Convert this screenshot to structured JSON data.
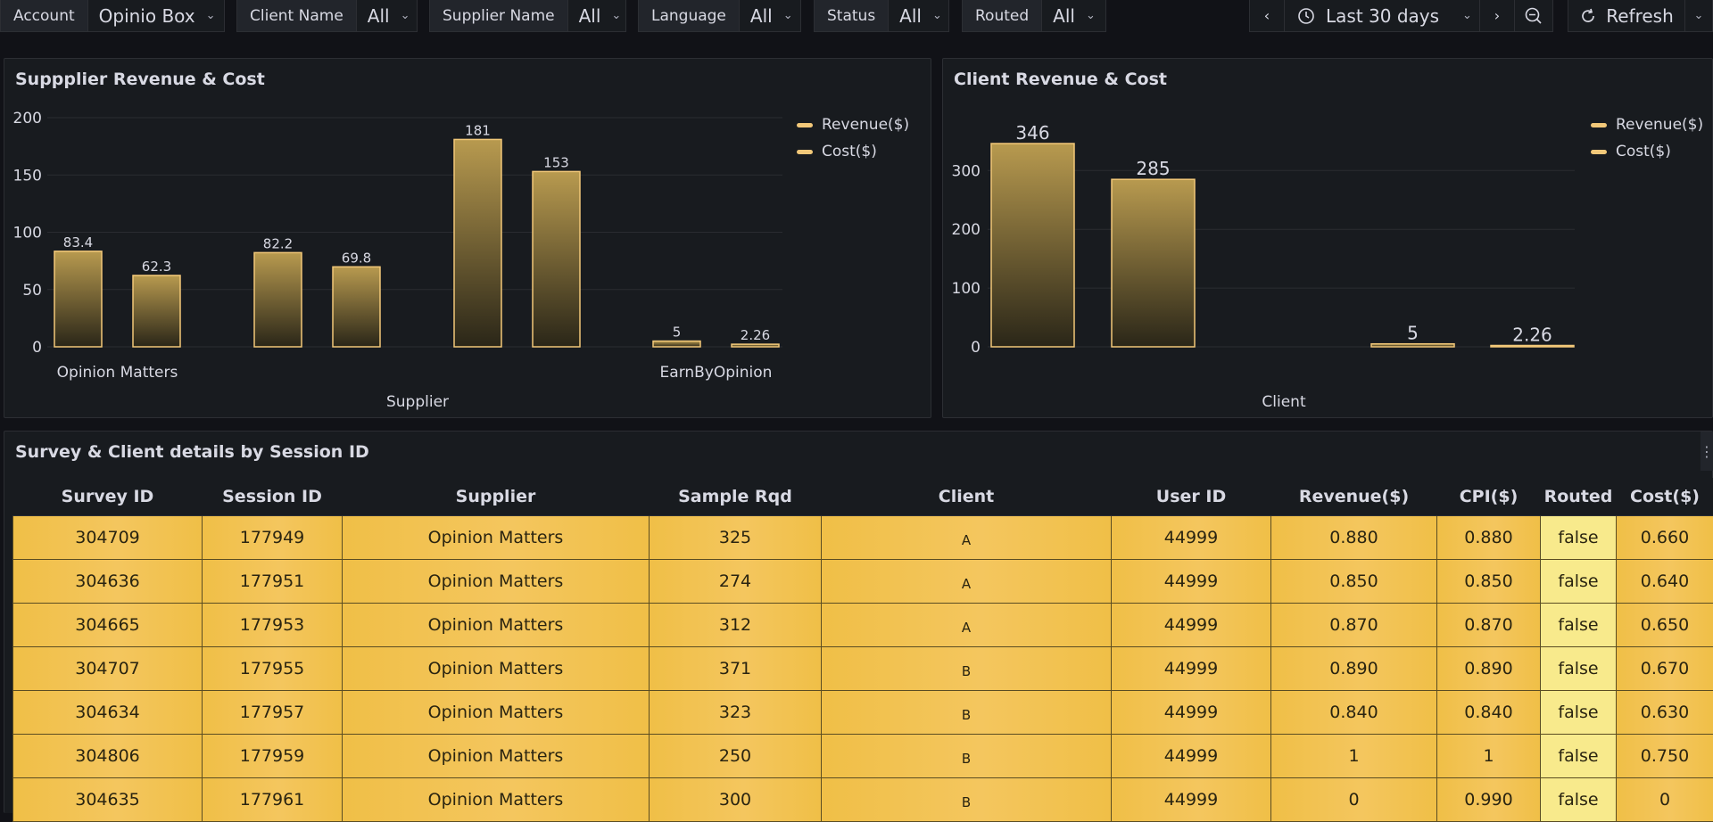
{
  "filters": [
    {
      "label": "Account",
      "value": "Opinio Box"
    },
    {
      "label": "Client Name",
      "value": "All"
    },
    {
      "label": "Supplier Name",
      "value": "All"
    },
    {
      "label": "Language",
      "value": "All"
    },
    {
      "label": "Status",
      "value": "All"
    },
    {
      "label": "Routed",
      "value": "All"
    }
  ],
  "time": {
    "range": "Last 30 days",
    "refresh_label": "Refresh"
  },
  "icons": {
    "chevron": "chevron-down-icon",
    "clock": "clock-icon",
    "zoom_out": "zoom-out-icon",
    "refresh": "refresh-icon"
  },
  "colors": {
    "accent": "#f2c14e",
    "bar_stroke": "#f2c879",
    "legend": "#f2c879"
  },
  "supplier_panel": {
    "title": "Suppplier Revenue & Cost",
    "legend": [
      "Revenue($)",
      "Cost($)"
    ],
    "chart_data": {
      "type": "bar",
      "xlabel": "Supplier",
      "ylabel": "",
      "ylim": [
        0,
        200
      ],
      "yticks": [
        0,
        50,
        100,
        150,
        200
      ],
      "groups": [
        {
          "label": "Opinion Matters",
          "values": [
            83.4,
            62.3
          ],
          "labels": [
            "83.4",
            "62.3"
          ]
        },
        {
          "label": "",
          "values": [
            82.2,
            69.8
          ],
          "labels": [
            "82.2",
            "69.8"
          ]
        },
        {
          "label": "",
          "values": [
            181,
            153
          ],
          "labels": [
            "181",
            "153"
          ]
        },
        {
          "label": "EarnByOpinion",
          "values": [
            5,
            2.26
          ],
          "labels": [
            "5",
            "2.26"
          ]
        }
      ],
      "series": [
        {
          "name": "Revenue($)"
        },
        {
          "name": "Cost($)"
        }
      ],
      "legend_position": "top-right",
      "grid": true
    }
  },
  "client_panel": {
    "title": "Client Revenue & Cost",
    "legend": [
      "Revenue($)",
      "Cost($)"
    ],
    "chart_data": {
      "type": "bar",
      "xlabel": "Client",
      "ylabel": "",
      "ylim": [
        0,
        346
      ],
      "yticks": [
        0,
        100,
        200,
        300
      ],
      "groups": [
        {
          "label": "",
          "values": [
            346,
            285
          ],
          "labels": [
            "346",
            "285"
          ]
        },
        {
          "label": "",
          "values": [
            5,
            2.26
          ],
          "labels": [
            "5",
            "2.26"
          ]
        }
      ],
      "series": [
        {
          "name": "Revenue($)"
        },
        {
          "name": "Cost($)"
        }
      ],
      "legend_position": "top-right",
      "grid": true
    }
  },
  "table_panel": {
    "title": "Survey & Client details by Session ID",
    "columns": [
      "Survey ID",
      "Session ID",
      "Supplier",
      "Sample Rqd",
      "Client",
      "User ID",
      "Revenue($)",
      "CPI($)",
      "Routed",
      "Cost($)"
    ],
    "rows": [
      [
        "304709",
        "177949",
        "Opinion Matters",
        "325",
        "A",
        "44999",
        "0.880",
        "0.880",
        "false",
        "0.660"
      ],
      [
        "304636",
        "177951",
        "Opinion Matters",
        "274",
        "A",
        "44999",
        "0.850",
        "0.850",
        "false",
        "0.640"
      ],
      [
        "304665",
        "177953",
        "Opinion Matters",
        "312",
        "A",
        "44999",
        "0.870",
        "0.870",
        "false",
        "0.650"
      ],
      [
        "304707",
        "177955",
        "Opinion Matters",
        "371",
        "B",
        "44999",
        "0.890",
        "0.890",
        "false",
        "0.670"
      ],
      [
        "304634",
        "177957",
        "Opinion Matters",
        "323",
        "B",
        "44999",
        "0.840",
        "0.840",
        "false",
        "0.630"
      ],
      [
        "304806",
        "177959",
        "Opinion Matters",
        "250",
        "B",
        "44999",
        "1",
        "1",
        "false",
        "0.750"
      ],
      [
        "304635",
        "177961",
        "Opinion Matters",
        "300",
        "B",
        "44999",
        "0",
        "0.990",
        "false",
        "0"
      ]
    ]
  }
}
